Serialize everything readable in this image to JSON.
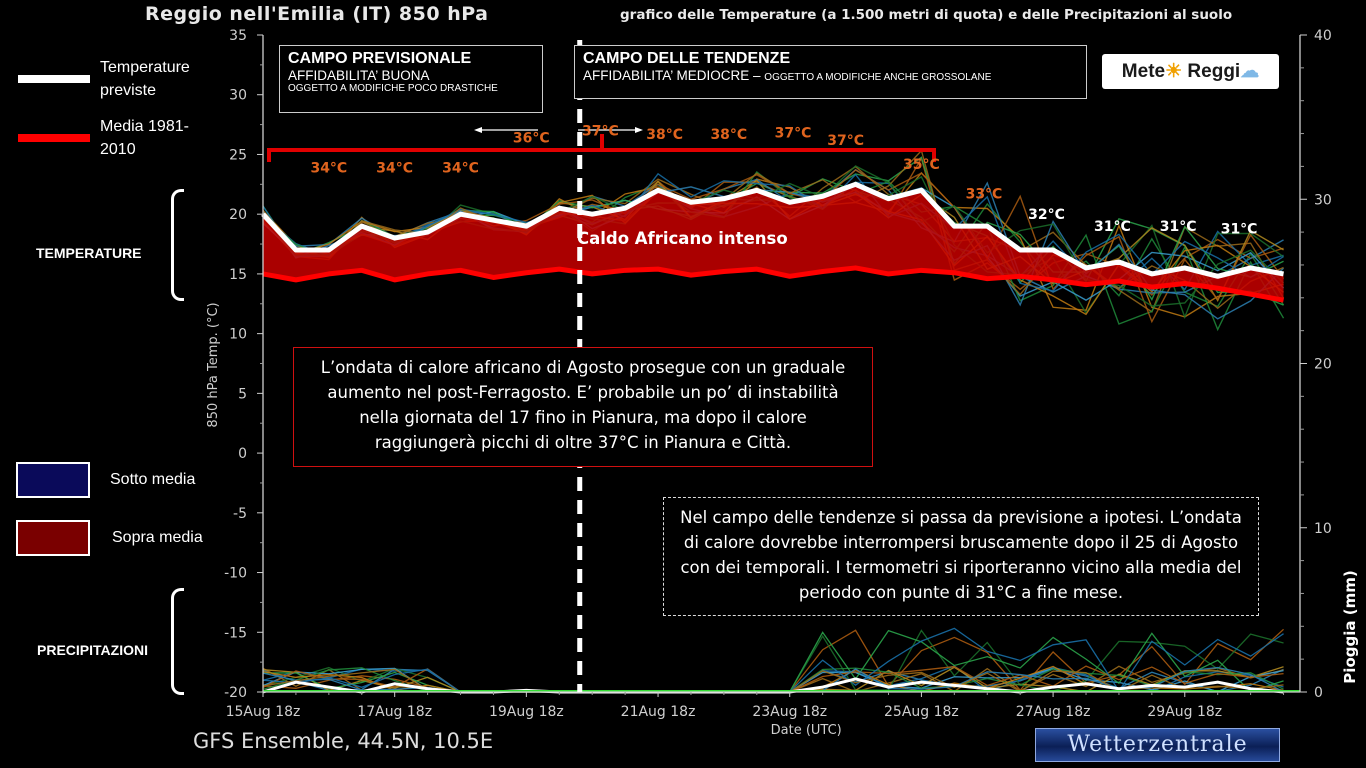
{
  "header": {
    "title": "Reggio nell'Emilia  (IT)  850 hPa",
    "subtitle": "grafico delle Temperature  (a 1.500 metri di quota) e delle Precipitazioni al suolo"
  },
  "legend": {
    "forecast_label": "Temperature previste",
    "mean_label": "Media 1981-2010",
    "below_label": "Sotto media",
    "above_label": "Sopra media",
    "forecast_color": "#ffffff",
    "mean_color": "#ff0000",
    "below_color": "#0a0a5a",
    "above_color": "#7a0000"
  },
  "side_labels": {
    "temperature": "TEMPERATURE",
    "precipitation": "PRECIPITAZIONI"
  },
  "zones": {
    "forecast": {
      "heading": "CAMPO PREVISIONALE",
      "line1": "AFFIDABILITA’ BUONA",
      "line2": "OGGETTO A MODIFICHE POCO DRASTICHE"
    },
    "trend": {
      "heading": "CAMPO DELLE TENDENZE",
      "line1": "AFFIDABILITA’ MEDIOCRE –",
      "line2": "OGGETTO A MODIFICHE ANCHE GROSSOLANE"
    }
  },
  "logo": {
    "text_left": "Mete",
    "text_right": "Reggi",
    "sun_icon": "sun-icon",
    "cloud_icon": "cloud-icon"
  },
  "notes": {
    "box1": "L’ondata di calore africano di Agosto prosegue con un graduale aumento nel post-Ferragosto. E’ probabile un po’ di instabilità nella giornata del 17 fino in Pianura, ma dopo il calore raggiungerà picchi di oltre 37°C in Pianura e Città.",
    "box2": "Nel campo delle tendenze si passa da previsione a ipotesi. L’ondata di calore dovrebbe interrompersi bruscamente dopo il 25 di Agosto con dei temporali. I termometri si riporteranno vicino alla media del periodo con punte di 31°C a fine mese.",
    "band_label": "Caldo Africano intenso"
  },
  "footer": {
    "model": "GFS Ensemble, 44.5N, 10.5E",
    "source": "Wetterzentrale"
  },
  "chart_data": {
    "type": "line",
    "xlabel": "Date (UTC)",
    "ylabel_left": "850 hPa Temp. (°C)",
    "ylabel_right": "Pioggia (mm)",
    "ylim_left": [
      -20,
      35
    ],
    "ylim_right": [
      0,
      40
    ],
    "yticks_left": [
      35,
      30,
      25,
      20,
      15,
      10,
      5,
      0,
      -5,
      -10,
      -15,
      -20
    ],
    "yticks_right": [
      40,
      30,
      20,
      10,
      0
    ],
    "xtick_labels": [
      "15Aug 18z",
      "17Aug 18z",
      "19Aug 18z",
      "21Aug 18z",
      "23Aug 18z",
      "25Aug 18z",
      "27Aug 18z",
      "29Aug 18z"
    ],
    "x_step_hours": 12,
    "x_count": 32,
    "forecast_temperature": [
      20,
      17,
      17,
      19,
      18,
      18.5,
      20,
      19.5,
      19,
      20.5,
      20,
      20.5,
      22,
      21,
      21.3,
      22,
      21,
      21.5,
      22.5,
      21.3,
      22,
      19,
      19,
      17,
      17,
      15.5,
      16,
      15,
      15.5,
      14.8,
      15.5,
      15
    ],
    "climate_mean": [
      15,
      14.5,
      15,
      15.3,
      14.5,
      15,
      15.3,
      14.7,
      15.1,
      15.4,
      15,
      15.3,
      15.4,
      14.9,
      15.2,
      15.4,
      14.8,
      15.2,
      15.5,
      15,
      15.3,
      15.1,
      14.6,
      14.8,
      14.5,
      14.1,
      14.4,
      13.9,
      14.2,
      13.8,
      13.3,
      12.8
    ],
    "precipitation_mm": [
      0,
      0.6,
      0.3,
      0,
      0.5,
      0.2,
      0,
      0,
      0.1,
      0,
      0,
      0,
      0,
      0,
      0,
      0,
      0,
      0.3,
      0.8,
      0.3,
      0.6,
      0.4,
      0.2,
      0,
      0.3,
      0.5,
      0.2,
      0.4,
      0.3,
      0.6,
      0.2,
      0
    ],
    "annotations_temp": [
      {
        "text": "34°C",
        "x": 4,
        "y": 23.5,
        "color": "#e0641e"
      },
      {
        "text": "34°C",
        "x": 8,
        "y": 23.5,
        "color": "#e0641e"
      },
      {
        "text": "34°C",
        "x": 12,
        "y": 23.5,
        "color": "#e0641e"
      },
      {
        "text": "36°C",
        "x": 16.3,
        "y": 26,
        "color": "#e0641e"
      },
      {
        "text": "37°C",
        "x": 20.5,
        "y": 26.6,
        "color": "#e0641e"
      },
      {
        "text": "38°C",
        "x": 24.4,
        "y": 26.3,
        "color": "#e0641e"
      },
      {
        "text": "38°C",
        "x": 28.3,
        "y": 26.3,
        "color": "#e0641e"
      },
      {
        "text": "37°C",
        "x": 32.2,
        "y": 26.4,
        "color": "#e0641e"
      },
      {
        "text": "37°C",
        "x": 35.4,
        "y": 25.8,
        "color": "#e0641e"
      },
      {
        "text": "35°C",
        "x": 40,
        "y": 23.8,
        "color": "#e0641e"
      },
      {
        "text": "33°C",
        "x": 43.8,
        "y": 21.3,
        "color": "#e0641e"
      },
      {
        "text": "32°C",
        "x": 47.6,
        "y": 19.6,
        "color": "#ffffff"
      },
      {
        "text": "31°C",
        "x": 51.6,
        "y": 18.6,
        "color": "#ffffff"
      },
      {
        "text": "31°C",
        "x": 55.6,
        "y": 18.6,
        "color": "#ffffff"
      },
      {
        "text": "31°C",
        "x": 59.3,
        "y": 18.4,
        "color": "#ffffff"
      }
    ]
  },
  "colors": {
    "background": "#000000",
    "band_red": "#c80000",
    "bracket_red": "#e00000",
    "divider": "#ffffff",
    "hot_annotation": "#e0641e"
  }
}
